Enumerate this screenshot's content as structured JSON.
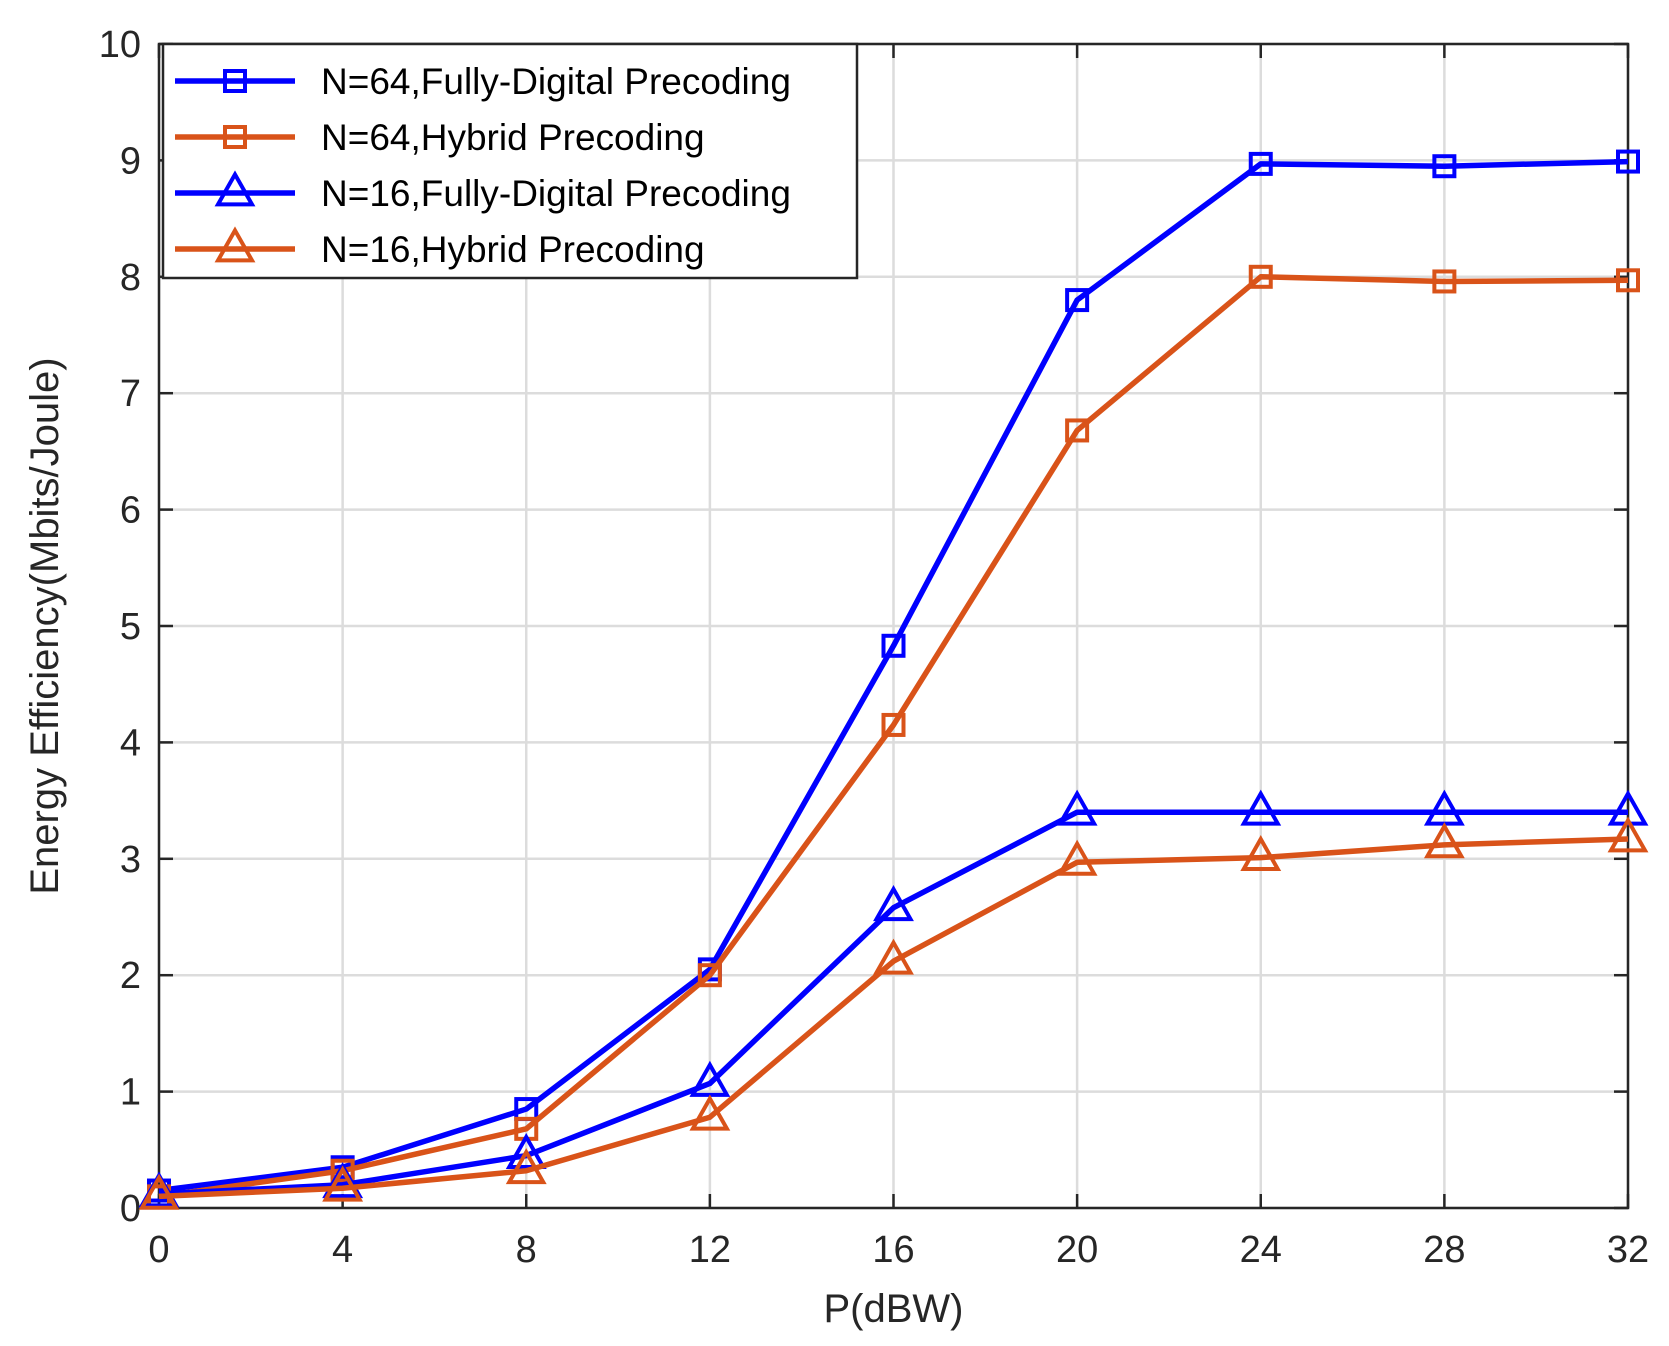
{
  "chart_data": {
    "type": "line",
    "title": "",
    "xlabel": "P(dBW)",
    "ylabel": "Energy Efficiency(Mbits/Joule)",
    "x": [
      0,
      4,
      8,
      12,
      16,
      20,
      24,
      28,
      32
    ],
    "xlim": [
      0,
      32
    ],
    "ylim": [
      0,
      10
    ],
    "xticks": [
      "0",
      "4",
      "8",
      "12",
      "16",
      "20",
      "24",
      "28",
      "32"
    ],
    "yticks": [
      "0",
      "1",
      "2",
      "3",
      "4",
      "5",
      "6",
      "7",
      "8",
      "9",
      "10"
    ],
    "grid": true,
    "legend_position": "top-left",
    "series": [
      {
        "name": "N=64,Fully-Digital Precoding",
        "color": "#0000FF",
        "marker": "square",
        "values": [
          0.15,
          0.35,
          0.85,
          2.05,
          4.83,
          7.8,
          8.97,
          8.95,
          8.99
        ]
      },
      {
        "name": "N=64,Hybrid Precoding",
        "color": "#D95319",
        "marker": "square",
        "values": [
          0.1,
          0.32,
          0.68,
          2.0,
          4.15,
          6.68,
          8.0,
          7.96,
          7.97
        ]
      },
      {
        "name": "N=16,Fully-Digital Precoding",
        "color": "#0000FF",
        "marker": "triangle",
        "values": [
          0.12,
          0.2,
          0.45,
          1.07,
          2.58,
          3.4,
          3.4,
          3.4,
          3.4
        ]
      },
      {
        "name": "N=16,Hybrid Precoding",
        "color": "#D95319",
        "marker": "triangle",
        "values": [
          0.1,
          0.17,
          0.32,
          0.78,
          2.12,
          2.97,
          3.01,
          3.12,
          3.17
        ]
      }
    ]
  }
}
